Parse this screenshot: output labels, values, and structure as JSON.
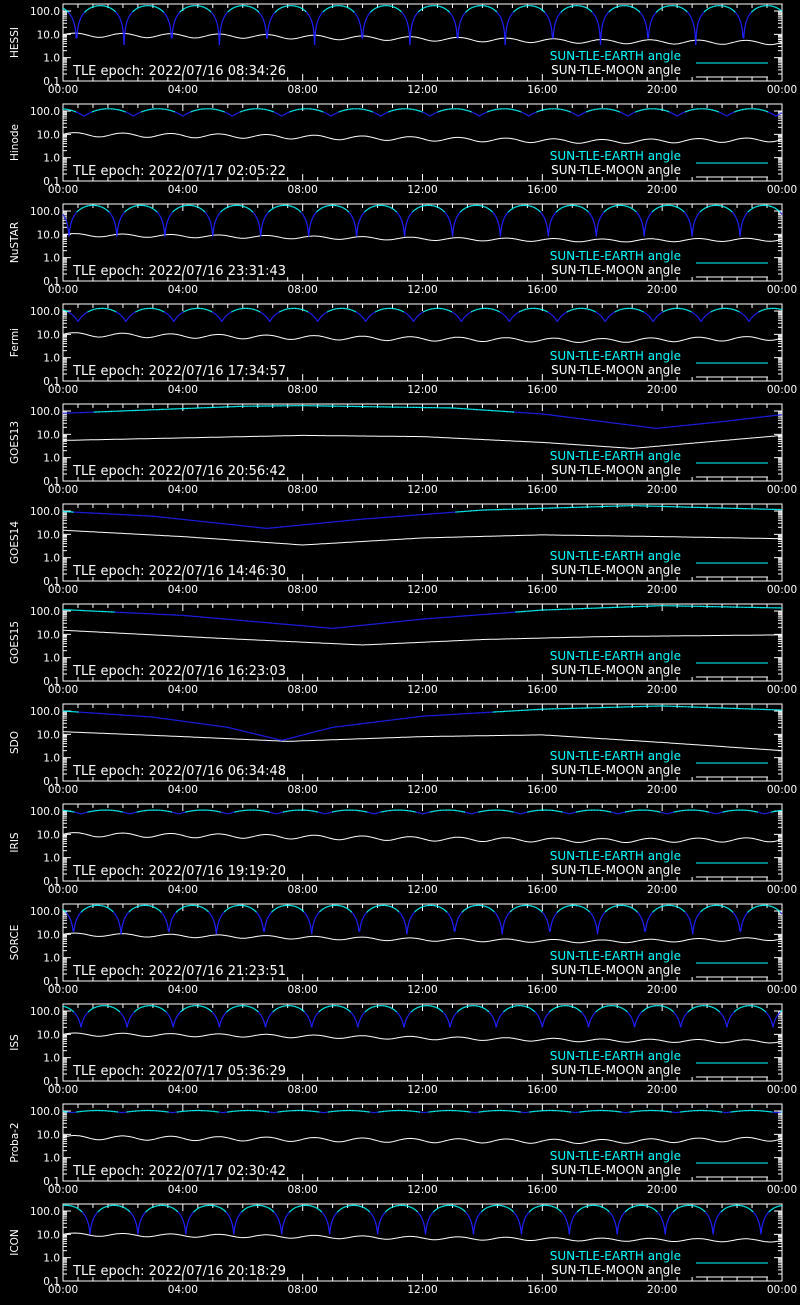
{
  "figure": {
    "background": "#000000",
    "axis_color": "#ffffff",
    "earth_color": "#00ffff",
    "earth_low_color": "#2020ff",
    "moon_color": "#ffffff"
  },
  "common": {
    "x_tick_labels": [
      "00:00",
      "04:00",
      "08:00",
      "12:00",
      "16:00",
      "20:00",
      "00:00"
    ],
    "y_tick_labels": [
      "0.1",
      "1.0",
      "10.0",
      "100.0"
    ],
    "y_scale": "log",
    "ylim": [
      0.1,
      200
    ],
    "xlim_hours": [
      0,
      24
    ],
    "earth_legend": "SUN-TLE-EARTH angle",
    "moon_legend": "SUN-TLE-MOON angle",
    "legend_position": "bottom-right"
  },
  "chart_data": [
    {
      "type": "line",
      "ylabel": "HESSI",
      "epoch_text": "TLE epoch: 2022/07/16 08:34:26",
      "earth": {
        "pattern": "orbit",
        "period_h": 1.59,
        "phase_h": 0.45,
        "min": 3.5,
        "max": 170
      },
      "moon": {
        "points": [
          [
            0,
            9.5
          ],
          [
            6,
            8.5
          ],
          [
            12,
            6.5
          ],
          [
            18,
            5.0
          ],
          [
            24,
            4.5
          ]
        ],
        "wiggle": 0.2
      }
    },
    {
      "type": "line",
      "ylabel": "Hinode",
      "epoch_text": "TLE epoch: 2022/07/17 02:05:22",
      "earth": {
        "pattern": "orbit",
        "period_h": 1.65,
        "phase_h": 0.7,
        "min": 60,
        "max": 125
      },
      "moon": {
        "points": [
          [
            0,
            10
          ],
          [
            6,
            8.5
          ],
          [
            12,
            6.5
          ],
          [
            18,
            5.0
          ],
          [
            24,
            6.0
          ]
        ],
        "wiggle": 0.2
      }
    },
    {
      "type": "line",
      "ylabel": "NuSTAR",
      "epoch_text": "TLE epoch: 2022/07/16 23:31:43",
      "earth": {
        "pattern": "orbit",
        "period_h": 1.6,
        "phase_h": 0.2,
        "min": 8,
        "max": 175
      },
      "moon": {
        "points": [
          [
            0,
            9.5
          ],
          [
            6,
            8
          ],
          [
            12,
            6.5
          ],
          [
            18,
            5.5
          ],
          [
            24,
            6.0
          ]
        ],
        "wiggle": 0.15
      }
    },
    {
      "type": "line",
      "ylabel": "Fermi",
      "epoch_text": "TLE epoch: 2022/07/16 17:34:57",
      "earth": {
        "pattern": "orbit",
        "period_h": 1.6,
        "phase_h": 0.5,
        "min": 35,
        "max": 130
      },
      "moon": {
        "points": [
          [
            0,
            10
          ],
          [
            6,
            8
          ],
          [
            12,
            6.5
          ],
          [
            18,
            5.5
          ],
          [
            24,
            7.0
          ]
        ],
        "wiggle": 0.2
      }
    },
    {
      "type": "line",
      "ylabel": "GOES13",
      "epoch_text": "TLE epoch: 2022/07/16 20:56:42",
      "earth": {
        "pattern": "dip",
        "points": [
          [
            0,
            80
          ],
          [
            6,
            160
          ],
          [
            8,
            170
          ],
          [
            13,
            135
          ],
          [
            16,
            75
          ],
          [
            19.8,
            18
          ],
          [
            22,
            35
          ],
          [
            24,
            70
          ]
        ]
      },
      "moon": {
        "points": [
          [
            0,
            5.5
          ],
          [
            8,
            9
          ],
          [
            12,
            8
          ],
          [
            16,
            4.5
          ],
          [
            19,
            2.5
          ],
          [
            24,
            9
          ]
        ],
        "wiggle": 0
      }
    },
    {
      "type": "line",
      "ylabel": "GOES14",
      "epoch_text": "TLE epoch: 2022/07/16 14:46:30",
      "earth": {
        "pattern": "dip",
        "points": [
          [
            0,
            95
          ],
          [
            3,
            60
          ],
          [
            6.8,
            18
          ],
          [
            10,
            45
          ],
          [
            14,
            110
          ],
          [
            19,
            170
          ],
          [
            24,
            115
          ]
        ]
      },
      "moon": {
        "points": [
          [
            0,
            15
          ],
          [
            4,
            8
          ],
          [
            8,
            3.5
          ],
          [
            12,
            7
          ],
          [
            16,
            9.5
          ],
          [
            20,
            8
          ],
          [
            24,
            6.5
          ]
        ],
        "wiggle": 0
      }
    },
    {
      "type": "line",
      "ylabel": "GOES15",
      "epoch_text": "TLE epoch: 2022/07/16 16:23:03",
      "earth": {
        "pattern": "dip",
        "points": [
          [
            0,
            115
          ],
          [
            4,
            65
          ],
          [
            9,
            18
          ],
          [
            12,
            45
          ],
          [
            16,
            110
          ],
          [
            20,
            170
          ],
          [
            24,
            135
          ]
        ]
      },
      "moon": {
        "points": [
          [
            0,
            15
          ],
          [
            5,
            7
          ],
          [
            10,
            3.5
          ],
          [
            14,
            6
          ],
          [
            18,
            8
          ],
          [
            24,
            9.5
          ]
        ],
        "wiggle": 0
      }
    },
    {
      "type": "line",
      "ylabel": "SDO",
      "epoch_text": "TLE epoch: 2022/07/16 06:34:48",
      "earth": {
        "pattern": "dip",
        "points": [
          [
            0,
            100
          ],
          [
            3,
            55
          ],
          [
            5.5,
            20
          ],
          [
            7.3,
            5.5
          ],
          [
            9,
            20
          ],
          [
            12,
            60
          ],
          [
            16,
            120
          ],
          [
            20,
            165
          ],
          [
            24,
            110
          ]
        ]
      },
      "moon": {
        "points": [
          [
            0,
            13
          ],
          [
            4,
            8
          ],
          [
            7.5,
            5
          ],
          [
            12,
            8
          ],
          [
            16,
            9.5
          ],
          [
            20,
            4.5
          ],
          [
            24,
            2.0
          ]
        ],
        "wiggle": 0
      }
    },
    {
      "type": "line",
      "ylabel": "IRIS",
      "epoch_text": "TLE epoch: 2022/07/16 19:19:20",
      "earth": {
        "pattern": "orbit",
        "period_h": 1.63,
        "phase_h": 0.6,
        "min": 75,
        "max": 110
      },
      "moon": {
        "points": [
          [
            0,
            10
          ],
          [
            6,
            8.5
          ],
          [
            12,
            6.5
          ],
          [
            18,
            5.5
          ],
          [
            24,
            6.0
          ]
        ],
        "wiggle": 0.2
      }
    },
    {
      "type": "line",
      "ylabel": "SORCE",
      "epoch_text": "TLE epoch: 2022/07/16 21:23:51",
      "earth": {
        "pattern": "orbit",
        "period_h": 1.59,
        "phase_h": 0.35,
        "min": 10,
        "max": 175
      },
      "moon": {
        "points": [
          [
            0,
            10
          ],
          [
            6,
            8
          ],
          [
            12,
            6.0
          ],
          [
            18,
            5.0
          ],
          [
            24,
            6.5
          ]
        ],
        "wiggle": 0.15
      }
    },
    {
      "type": "line",
      "ylabel": "ISS",
      "epoch_text": "TLE epoch: 2022/07/17 05:36:29",
      "earth": {
        "pattern": "orbit",
        "period_h": 1.54,
        "phase_h": 0.6,
        "min": 20,
        "max": 170
      },
      "moon": {
        "points": [
          [
            0,
            10
          ],
          [
            6,
            9
          ],
          [
            12,
            7
          ],
          [
            18,
            5.5
          ],
          [
            24,
            5.0
          ]
        ],
        "wiggle": 0.15
      }
    },
    {
      "type": "line",
      "ylabel": "Proba-2",
      "epoch_text": "TLE epoch: 2022/07/17 02:30:42",
      "earth": {
        "pattern": "orbit",
        "period_h": 1.68,
        "phase_h": 0.3,
        "min": 85,
        "max": 105
      },
      "moon": {
        "points": [
          [
            0,
            7.5
          ],
          [
            6,
            6.5
          ],
          [
            12,
            5.5
          ],
          [
            18,
            5.0
          ],
          [
            24,
            6.5
          ]
        ],
        "wiggle": 0.2
      }
    },
    {
      "type": "line",
      "ylabel": "ICON",
      "epoch_text": "TLE epoch: 2022/07/16 20:18:29",
      "earth": {
        "pattern": "orbit",
        "period_h": 1.6,
        "phase_h": 0.9,
        "min": 10,
        "max": 175
      },
      "moon": {
        "points": [
          [
            0,
            10
          ],
          [
            6,
            8.5
          ],
          [
            12,
            7
          ],
          [
            18,
            6
          ],
          [
            24,
            5.5
          ]
        ],
        "wiggle": 0.15
      }
    }
  ]
}
